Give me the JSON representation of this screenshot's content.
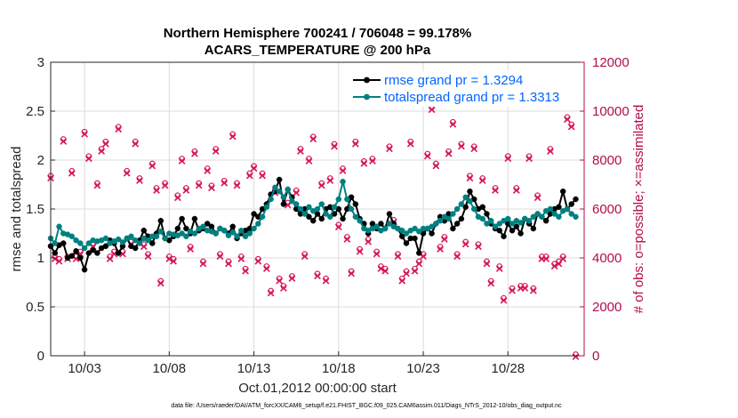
{
  "colors": {
    "rmse": "#000000",
    "spread": "#008080",
    "obs": "#d6175a",
    "axis_left": "#262626",
    "axis_right": "#b20c4f",
    "legend_text": "#0066ff"
  },
  "chart_data": {
    "type": "line",
    "title_line1": "Northern Hemisphere 700241 / 706048 = 99.178%",
    "title_line2": "ACARS_TEMPERATURE @ 200 hPa",
    "xlabel": "Oct.01,2012 00:00:00 start",
    "ylabel_left": "rmse and totalspread",
    "ylabel_right": "# of obs: o=possible; ×=assimilated",
    "x_ticks": [
      {
        "day": 3,
        "label": "10/03"
      },
      {
        "day": 8,
        "label": "10/08"
      },
      {
        "day": 13,
        "label": "10/13"
      },
      {
        "day": 18,
        "label": "10/18"
      },
      {
        "day": 23,
        "label": "10/23"
      },
      {
        "day": 28,
        "label": "10/28"
      }
    ],
    "y_left_ticks": [
      "0",
      "0.5",
      "1",
      "1.5",
      "2",
      "2.5",
      "3"
    ],
    "y_right_ticks": [
      "0",
      "2000",
      "4000",
      "6000",
      "8000",
      "10000",
      "12000"
    ],
    "xlim": [
      1,
      32.5
    ],
    "ylim_left": [
      0,
      3
    ],
    "ylim_right": [
      0,
      12000
    ],
    "legend": [
      {
        "key": "rmse",
        "label": "rmse grand pr = 1.3294"
      },
      {
        "key": "spread",
        "label": "totalspread grand pr = 1.3313"
      }
    ],
    "series": [
      {
        "key": "rmse",
        "start": 1.0,
        "step": 0.25,
        "values": [
          1.12,
          1.05,
          1.13,
          1.15,
          1.0,
          1.02,
          1.07,
          1.0,
          0.88,
          1.05,
          1.08,
          1.05,
          1.1,
          1.12,
          1.18,
          1.15,
          1.05,
          1.12,
          1.2,
          1.12,
          1.1,
          1.18,
          1.28,
          1.22,
          1.15,
          1.25,
          1.38,
          1.2,
          1.18,
          1.22,
          1.3,
          1.4,
          1.3,
          1.25,
          1.4,
          1.28,
          1.3,
          1.35,
          1.32,
          1.25,
          1.3,
          1.28,
          1.25,
          1.32,
          1.2,
          1.25,
          1.28,
          1.3,
          1.45,
          1.42,
          1.5,
          1.55,
          1.65,
          1.68,
          1.8,
          1.55,
          1.7,
          1.62,
          1.5,
          1.45,
          1.5,
          1.42,
          1.38,
          1.45,
          1.4,
          1.5,
          1.52,
          1.45,
          1.5,
          1.4,
          1.5,
          1.62,
          1.55,
          1.4,
          1.35,
          1.25,
          1.35,
          1.3,
          1.35,
          1.3,
          1.45,
          1.35,
          1.3,
          1.22,
          1.15,
          1.2,
          1.2,
          1.05,
          1.25,
          1.3,
          1.25,
          1.35,
          1.42,
          1.38,
          1.45,
          1.3,
          1.35,
          1.4,
          1.52,
          1.68,
          1.6,
          1.5,
          1.52,
          1.45,
          1.35,
          1.3,
          1.28,
          1.22,
          1.35,
          1.28,
          1.32,
          1.25,
          1.4,
          1.35,
          1.3,
          1.45,
          1.42,
          1.38,
          1.45,
          1.5,
          1.52,
          1.68,
          1.5,
          1.55,
          1.6
        ]
      },
      {
        "key": "spread",
        "start": 1.0,
        "step": 0.25,
        "values": [
          1.2,
          1.15,
          1.32,
          1.25,
          1.24,
          1.22,
          1.18,
          1.15,
          1.1,
          1.15,
          1.18,
          1.17,
          1.18,
          1.2,
          1.15,
          1.17,
          1.19,
          1.16,
          1.2,
          1.22,
          1.18,
          1.15,
          1.2,
          1.18,
          1.22,
          1.22,
          1.27,
          1.2,
          1.25,
          1.24,
          1.23,
          1.25,
          1.22,
          1.27,
          1.25,
          1.3,
          1.32,
          1.28,
          1.27,
          1.25,
          1.3,
          1.28,
          1.23,
          1.26,
          1.22,
          1.28,
          1.22,
          1.25,
          1.3,
          1.35,
          1.42,
          1.52,
          1.6,
          1.72,
          1.68,
          1.62,
          1.7,
          1.58,
          1.55,
          1.5,
          1.45,
          1.52,
          1.48,
          1.5,
          1.55,
          1.45,
          1.42,
          1.52,
          1.6,
          1.78,
          1.6,
          1.5,
          1.42,
          1.38,
          1.3,
          1.28,
          1.3,
          1.32,
          1.28,
          1.3,
          1.35,
          1.32,
          1.3,
          1.28,
          1.25,
          1.28,
          1.3,
          1.27,
          1.3,
          1.3,
          1.32,
          1.35,
          1.38,
          1.42,
          1.4,
          1.45,
          1.5,
          1.55,
          1.62,
          1.58,
          1.5,
          1.42,
          1.4,
          1.35,
          1.38,
          1.32,
          1.35,
          1.38,
          1.4,
          1.35,
          1.38,
          1.36,
          1.4,
          1.38,
          1.42,
          1.45,
          1.42,
          1.48,
          1.5,
          1.45,
          1.42,
          1.48,
          1.5,
          1.45,
          1.42
        ]
      }
    ],
    "obs_possible": [
      [
        1,
        7300
      ],
      [
        1.25,
        4000
      ],
      [
        1.5,
        3900
      ],
      [
        1.75,
        8800
      ],
      [
        2,
        4000
      ],
      [
        2.25,
        7500
      ],
      [
        2.5,
        4000
      ],
      [
        2.75,
        4200
      ],
      [
        3,
        9100
      ],
      [
        3.25,
        8100
      ],
      [
        3.5,
        4500
      ],
      [
        3.75,
        7000
      ],
      [
        4,
        8400
      ],
      [
        4.25,
        8700
      ],
      [
        4.5,
        4000
      ],
      [
        4.75,
        4200
      ],
      [
        5,
        9300
      ],
      [
        5.25,
        4200
      ],
      [
        5.5,
        7500
      ],
      [
        5.75,
        4600
      ],
      [
        6,
        8700
      ],
      [
        6.25,
        7200
      ],
      [
        6.5,
        4500
      ],
      [
        6.75,
        4100
      ],
      [
        7,
        7800
      ],
      [
        7.25,
        6800
      ],
      [
        7.5,
        3000
      ],
      [
        7.75,
        7000
      ],
      [
        8,
        4000
      ],
      [
        8.25,
        3900
      ],
      [
        8.5,
        6500
      ],
      [
        8.75,
        8000
      ],
      [
        9,
        6800
      ],
      [
        9.25,
        4400
      ],
      [
        9.5,
        8300
      ],
      [
        9.75,
        7000
      ],
      [
        10,
        3800
      ],
      [
        10.25,
        7600
      ],
      [
        10.5,
        6900
      ],
      [
        10.75,
        8400
      ],
      [
        11,
        4100
      ],
      [
        11.25,
        7100
      ],
      [
        11.5,
        3800
      ],
      [
        11.75,
        9000
      ],
      [
        12,
        7000
      ],
      [
        12.25,
        4000
      ],
      [
        12.5,
        3500
      ],
      [
        12.75,
        7400
      ],
      [
        13,
        7700
      ],
      [
        13.25,
        3900
      ],
      [
        13.5,
        7400
      ],
      [
        13.75,
        3600
      ],
      [
        14,
        2600
      ],
      [
        14.25,
        6700
      ],
      [
        14.5,
        3100
      ],
      [
        14.75,
        2800
      ],
      [
        15,
        6200
      ],
      [
        15.25,
        3200
      ],
      [
        15.5,
        6700
      ],
      [
        15.75,
        8400
      ],
      [
        16,
        4100
      ],
      [
        16.25,
        8000
      ],
      [
        16.5,
        8900
      ],
      [
        16.75,
        3300
      ],
      [
        17,
        7000
      ],
      [
        17.25,
        3100
      ],
      [
        17.5,
        7200
      ],
      [
        17.75,
        8600
      ],
      [
        18,
        5300
      ],
      [
        18.25,
        7600
      ],
      [
        18.5,
        4800
      ],
      [
        18.75,
        3400
      ],
      [
        19,
        8700
      ],
      [
        19.25,
        4300
      ],
      [
        19.5,
        7900
      ],
      [
        19.75,
        4700
      ],
      [
        20,
        8000
      ],
      [
        20.25,
        4200
      ],
      [
        20.5,
        3600
      ],
      [
        20.75,
        3500
      ],
      [
        21,
        8500
      ],
      [
        21.25,
        5500
      ],
      [
        21.5,
        4100
      ],
      [
        21.75,
        3100
      ],
      [
        22,
        3400
      ],
      [
        22.25,
        8700
      ],
      [
        22.5,
        3500
      ],
      [
        22.75,
        3800
      ],
      [
        23,
        4100
      ],
      [
        23.25,
        8200
      ],
      [
        23.5,
        10100
      ],
      [
        23.75,
        7800
      ],
      [
        24,
        4400
      ],
      [
        24.25,
        4800
      ],
      [
        24.5,
        8300
      ],
      [
        24.75,
        9500
      ],
      [
        25,
        4100
      ],
      [
        25.25,
        8600
      ],
      [
        25.5,
        4600
      ],
      [
        25.75,
        7300
      ],
      [
        26,
        8500
      ],
      [
        26.25,
        4500
      ],
      [
        26.5,
        7200
      ],
      [
        26.75,
        3800
      ],
      [
        27,
        3000
      ],
      [
        27.25,
        6800
      ],
      [
        27.5,
        3600
      ],
      [
        27.75,
        2300
      ],
      [
        28,
        8100
      ],
      [
        28.25,
        2700
      ],
      [
        28.5,
        6800
      ],
      [
        28.75,
        2800
      ],
      [
        29,
        2800
      ],
      [
        29.25,
        8100
      ],
      [
        29.5,
        2700
      ],
      [
        29.75,
        6500
      ],
      [
        30,
        4000
      ],
      [
        30.25,
        4000
      ],
      [
        30.5,
        8400
      ],
      [
        30.75,
        3700
      ],
      [
        31,
        3800
      ],
      [
        31.25,
        4000
      ],
      [
        31.5,
        9700
      ],
      [
        31.75,
        9400
      ],
      [
        32,
        0
      ]
    ]
  },
  "footnote": "data file: /Users/raeder/DAI/ATM_forcXX/CAM6_setup/f.e21.FHIST_BGC.f09_025.CAM6assim.011/Diags_NTrS_2012-10/obs_diag_output.nc"
}
